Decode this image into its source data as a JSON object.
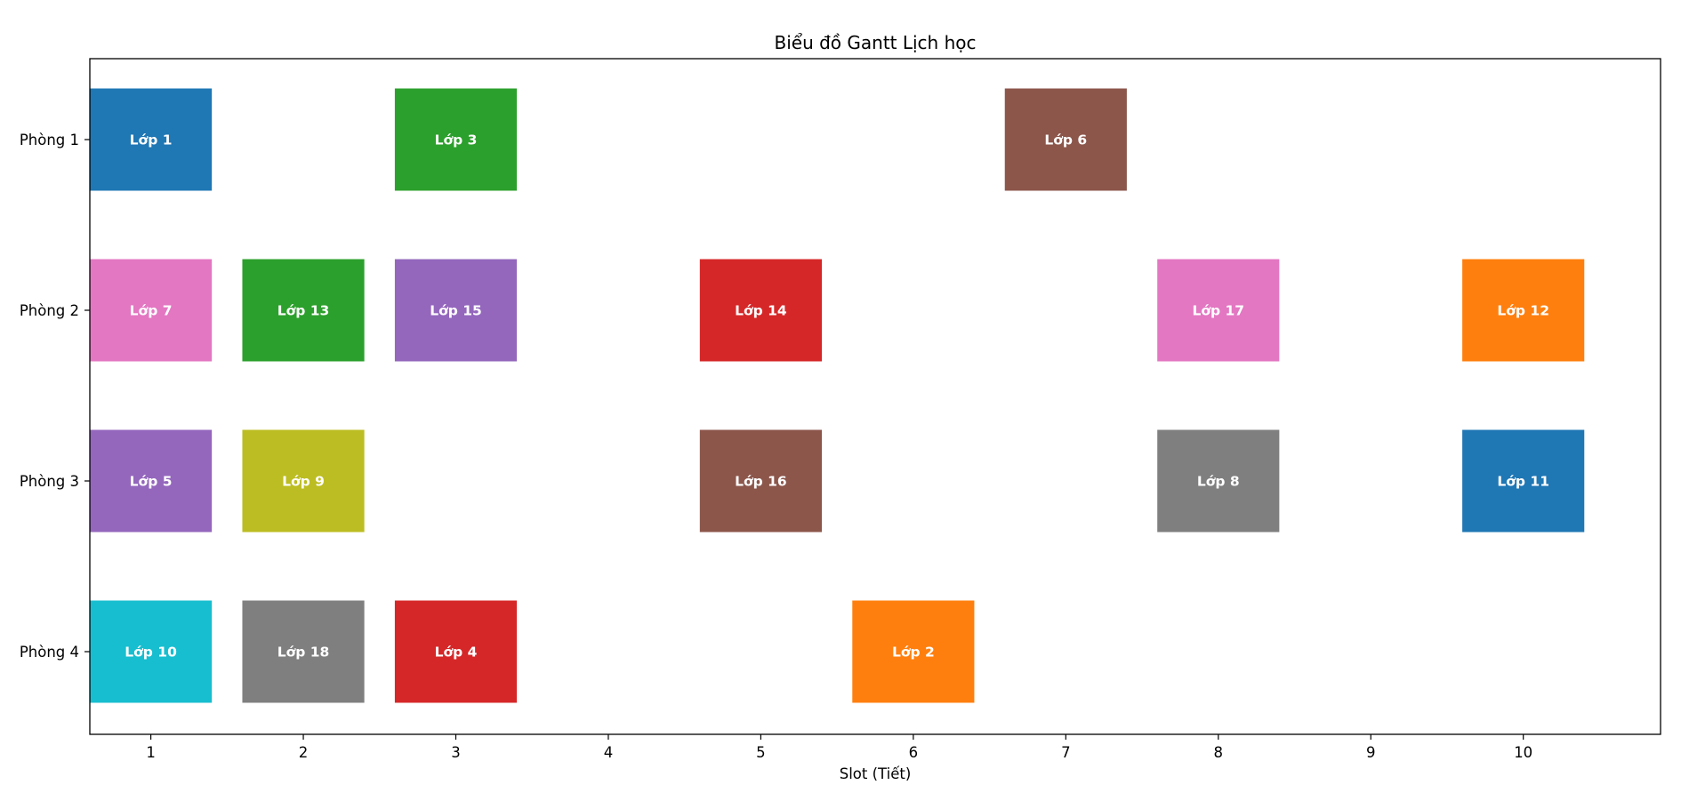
{
  "chart_data": {
    "type": "gantt",
    "title": "Biểu đồ Gantt Lịch học",
    "xlabel": "Slot (Tiết)",
    "ylabel": "",
    "xlim": [
      0.6,
      10.9
    ],
    "xticks": [
      1,
      2,
      3,
      4,
      5,
      6,
      7,
      8,
      9,
      10
    ],
    "rows": [
      "Phòng 1",
      "Phòng 2",
      "Phòng 3",
      "Phòng 4"
    ],
    "bar_width": 0.8,
    "grid": false,
    "legend": "none",
    "tasks": [
      {
        "label": "Lớp 1",
        "room": "Phòng 1",
        "slot": 1,
        "color": "#1f77b4"
      },
      {
        "label": "Lớp 3",
        "room": "Phòng 1",
        "slot": 3,
        "color": "#2ca02c"
      },
      {
        "label": "Lớp 6",
        "room": "Phòng 1",
        "slot": 7,
        "color": "#8c564b"
      },
      {
        "label": "Lớp 7",
        "room": "Phòng 2",
        "slot": 1,
        "color": "#e377c2"
      },
      {
        "label": "Lớp 13",
        "room": "Phòng 2",
        "slot": 2,
        "color": "#2ca02c"
      },
      {
        "label": "Lớp 15",
        "room": "Phòng 2",
        "slot": 3,
        "color": "#9467bd"
      },
      {
        "label": "Lớp 14",
        "room": "Phòng 2",
        "slot": 5,
        "color": "#d62728"
      },
      {
        "label": "Lớp 17",
        "room": "Phòng 2",
        "slot": 8,
        "color": "#e377c2"
      },
      {
        "label": "Lớp 12",
        "room": "Phòng 2",
        "slot": 10,
        "color": "#ff7f0e"
      },
      {
        "label": "Lớp 5",
        "room": "Phòng 3",
        "slot": 1,
        "color": "#9467bd"
      },
      {
        "label": "Lớp 9",
        "room": "Phòng 3",
        "slot": 2,
        "color": "#bcbd22"
      },
      {
        "label": "Lớp 16",
        "room": "Phòng 3",
        "slot": 5,
        "color": "#8c564b"
      },
      {
        "label": "Lớp 8",
        "room": "Phòng 3",
        "slot": 8,
        "color": "#7f7f7f"
      },
      {
        "label": "Lớp 11",
        "room": "Phòng 3",
        "slot": 10,
        "color": "#1f77b4"
      },
      {
        "label": "Lớp 10",
        "room": "Phòng 4",
        "slot": 1,
        "color": "#17becf"
      },
      {
        "label": "Lớp 18",
        "room": "Phòng 4",
        "slot": 2,
        "color": "#7f7f7f"
      },
      {
        "label": "Lớp 4",
        "room": "Phòng 4",
        "slot": 3,
        "color": "#d62728"
      },
      {
        "label": "Lớp 2",
        "room": "Phòng 4",
        "slot": 6,
        "color": "#ff7f0e"
      }
    ]
  }
}
